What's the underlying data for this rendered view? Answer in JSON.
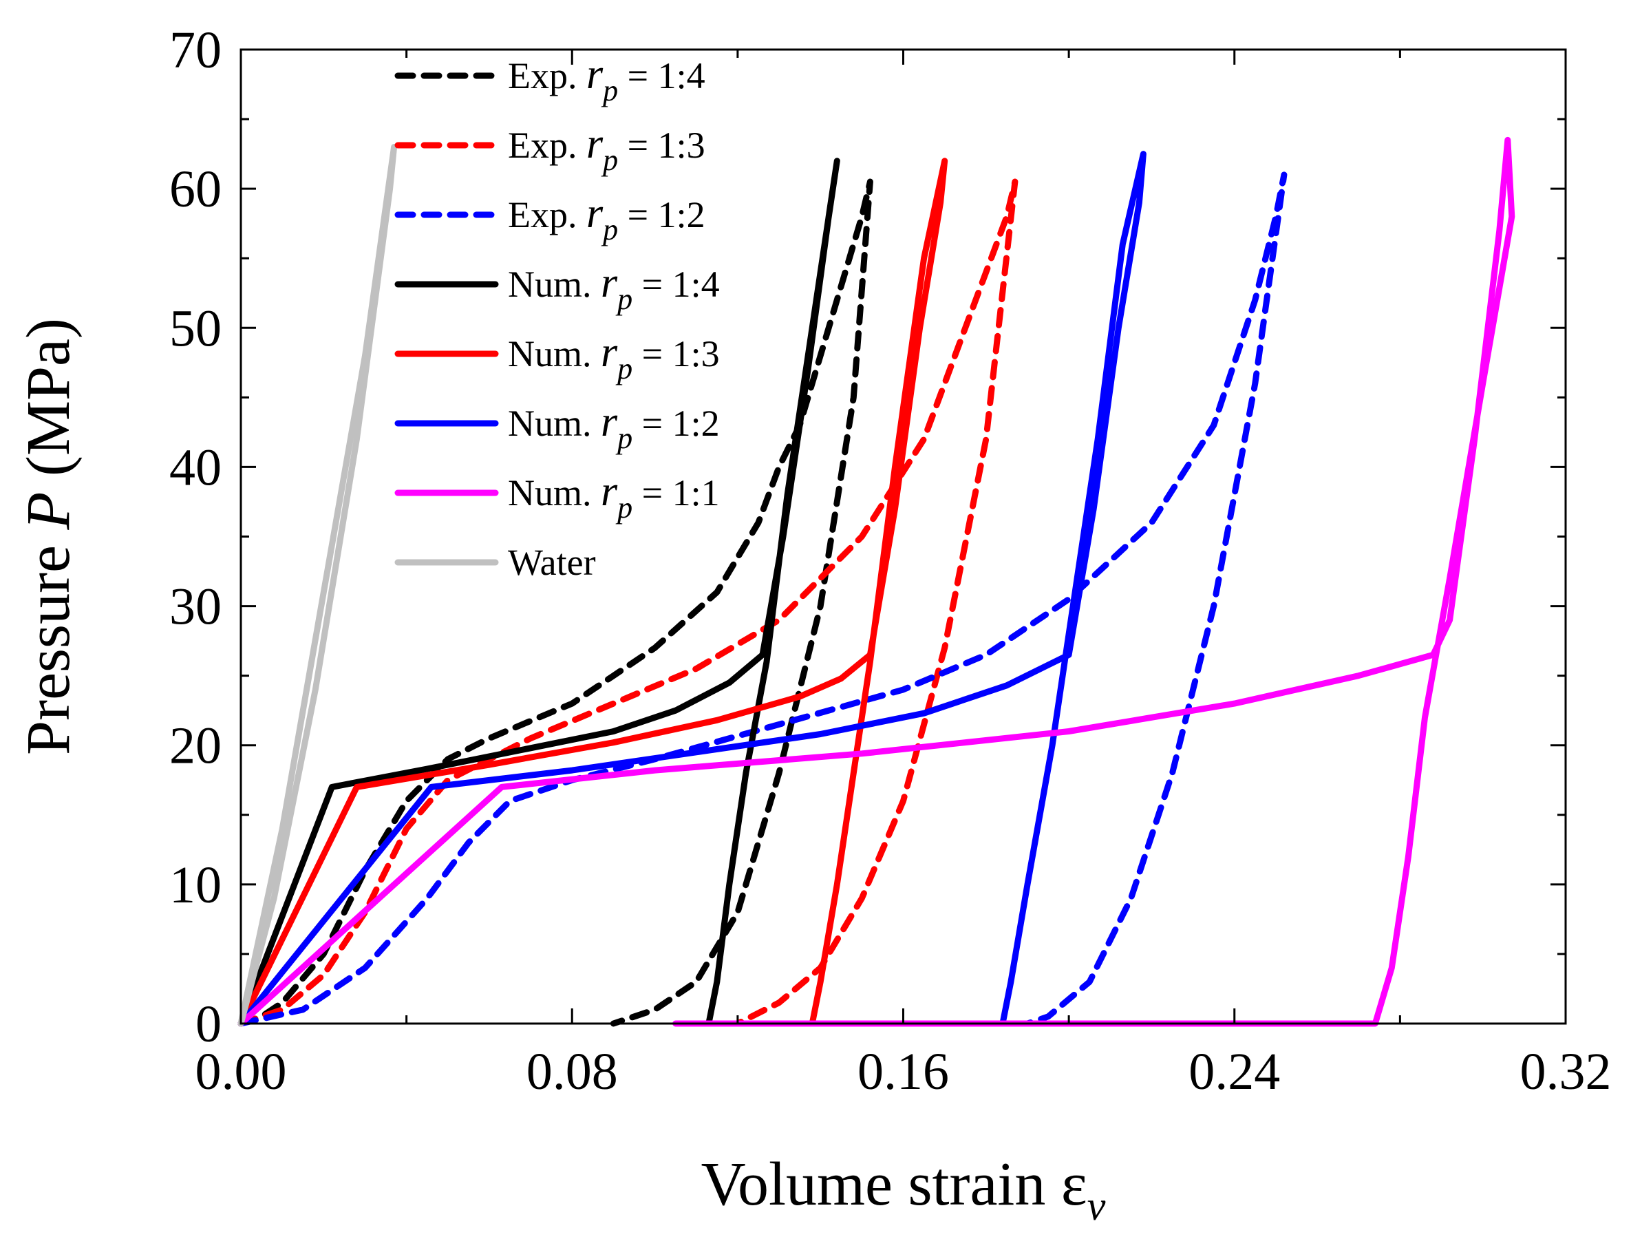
{
  "chart_data": {
    "type": "line",
    "title": "",
    "xlabel": "Volume strain ε",
    "xlabel_subscript": "v",
    "ylabel_prefix": "Pressure ",
    "ylabel_var": "P",
    "ylabel_unit": " (MPa)",
    "xlim": [
      0,
      0.32
    ],
    "ylim": [
      0,
      70
    ],
    "xticks": [
      {
        "value": 0,
        "label": "0.00"
      },
      {
        "value": 0.08,
        "label": "0.08"
      },
      {
        "value": 0.16,
        "label": "0.16"
      },
      {
        "value": 0.24,
        "label": "0.24"
      },
      {
        "value": 0.32,
        "label": "0.32"
      }
    ],
    "yticks": [
      {
        "value": 0,
        "label": "0"
      },
      {
        "value": 10,
        "label": "10"
      },
      {
        "value": 20,
        "label": "20"
      },
      {
        "value": 30,
        "label": "30"
      },
      {
        "value": 40,
        "label": "40"
      },
      {
        "value": 50,
        "label": "50"
      },
      {
        "value": 60,
        "label": "60"
      },
      {
        "value": 70,
        "label": "70"
      }
    ],
    "grid": false,
    "legend_position": "top-left",
    "series": [
      {
        "name_prefix": "Exp. ",
        "name_var": "r",
        "name_sub": "p",
        "name_suffix": " = 1:4",
        "color": "#000000",
        "dash": true,
        "x": [
          0,
          0.005,
          0.01,
          0.02,
          0.03,
          0.04,
          0.05,
          0.06,
          0.08,
          0.1,
          0.115,
          0.125,
          0.13,
          0.135,
          0.15,
          0.152,
          0.148,
          0.14,
          0.13,
          0.12,
          0.11,
          0.1,
          0.09
        ],
        "y": [
          0,
          0.5,
          1.5,
          5,
          11,
          16,
          19,
          20.5,
          23,
          27,
          31,
          36,
          40,
          43,
          58,
          60.5,
          45,
          30,
          18,
          8,
          3,
          1,
          0
        ]
      },
      {
        "name_prefix": "Exp. ",
        "name_var": "r",
        "name_sub": "p",
        "name_suffix": " = 1:3",
        "color": "#ff0000",
        "dash": true,
        "x": [
          0,
          0.01,
          0.02,
          0.03,
          0.04,
          0.05,
          0.07,
          0.09,
          0.11,
          0.13,
          0.15,
          0.165,
          0.175,
          0.185,
          0.187,
          0.18,
          0.17,
          0.16,
          0.15,
          0.14,
          0.13,
          0.12
        ],
        "y": [
          0,
          1,
          3.5,
          8,
          14,
          17.5,
          20.5,
          23,
          25.5,
          29,
          35,
          42,
          50,
          58,
          60.5,
          42,
          27,
          16,
          9,
          4,
          1.5,
          0
        ]
      },
      {
        "name_prefix": "Exp. ",
        "name_var": "r",
        "name_sub": "p",
        "name_suffix": " = 1:2",
        "color": "#0000ff",
        "dash": true,
        "x": [
          0,
          0.015,
          0.03,
          0.045,
          0.055,
          0.065,
          0.08,
          0.1,
          0.13,
          0.16,
          0.18,
          0.2,
          0.22,
          0.235,
          0.245,
          0.25,
          0.252,
          0.245,
          0.235,
          0.225,
          0.215,
          0.205,
          0.195,
          0.19
        ],
        "y": [
          0,
          1,
          4,
          9,
          13,
          16,
          17.5,
          19,
          21.5,
          24,
          26.5,
          30.5,
          36,
          43,
          52,
          58,
          61,
          46,
          30,
          18,
          9,
          3,
          0.5,
          0
        ]
      },
      {
        "name_prefix": "Num. ",
        "name_var": "r",
        "name_sub": "p",
        "name_suffix": " = 1:4",
        "color": "#000000",
        "dash": false,
        "x": [
          0,
          0.022,
          0.045,
          0.07,
          0.09,
          0.105,
          0.118,
          0.126,
          0.131,
          0.137,
          0.142,
          0.144,
          0.14,
          0.132,
          0.127,
          0.122,
          0.118,
          0.115,
          0.113
        ],
        "y": [
          0,
          17,
          18.3,
          19.8,
          21,
          22.5,
          24.5,
          26.5,
          35,
          47,
          58,
          62,
          54,
          38,
          26,
          18,
          10,
          3,
          0
        ]
      },
      {
        "name_prefix": "Num. ",
        "name_var": "r",
        "name_sub": "p",
        "name_suffix": " = 1:3",
        "color": "#ff0000",
        "dash": false,
        "x": [
          0,
          0.028,
          0.06,
          0.09,
          0.115,
          0.135,
          0.145,
          0.152,
          0.158,
          0.164,
          0.169,
          0.17,
          0.165,
          0.158,
          0.152,
          0.148,
          0.144,
          0.14,
          0.138
        ],
        "y": [
          0,
          17,
          18.6,
          20.2,
          21.8,
          23.5,
          24.8,
          26.5,
          37,
          50,
          59,
          62,
          55,
          40,
          26,
          18,
          10,
          3,
          0
        ]
      },
      {
        "name_prefix": "Num. ",
        "name_var": "r",
        "name_sub": "p",
        "name_suffix": " = 1:2",
        "color": "#0000ff",
        "dash": false,
        "x": [
          0,
          0.046,
          0.08,
          0.11,
          0.14,
          0.165,
          0.185,
          0.2,
          0.206,
          0.212,
          0.217,
          0.218,
          0.213,
          0.207,
          0.2,
          0.196,
          0.19,
          0.186,
          0.184
        ],
        "y": [
          0,
          17,
          18.2,
          19.5,
          20.8,
          22.3,
          24.3,
          26.5,
          37,
          50,
          59,
          62.5,
          56,
          42,
          28,
          20,
          10,
          3,
          0
        ]
      },
      {
        "name_prefix": "Num. ",
        "name_var": "r",
        "name_sub": "p",
        "name_suffix": " = 1:1",
        "color": "#ff00ff",
        "dash": false,
        "x": [
          0,
          0.063,
          0.1,
          0.15,
          0.2,
          0.24,
          0.27,
          0.288,
          0.292,
          0.298,
          0.304,
          0.306,
          0.307,
          0.3,
          0.292,
          0.286,
          0.282,
          0.278,
          0.275,
          0.274,
          0.105
        ],
        "y": [
          0,
          17,
          18.2,
          19.4,
          21,
          23,
          25,
          26.5,
          29,
          42,
          57,
          63.5,
          58,
          46,
          32,
          22,
          12,
          4,
          1,
          0,
          0
        ]
      },
      {
        "name_prefix": "Water",
        "name_var": "",
        "name_sub": "",
        "name_suffix": "",
        "color": "#c0c0c0",
        "dash": false,
        "x": [
          0,
          0.01,
          0.02,
          0.03,
          0.037,
          0.036,
          0.028,
          0.018,
          0.008,
          0
        ],
        "y": [
          0,
          14,
          31,
          48,
          63,
          60,
          42,
          24,
          9,
          0
        ]
      }
    ]
  }
}
